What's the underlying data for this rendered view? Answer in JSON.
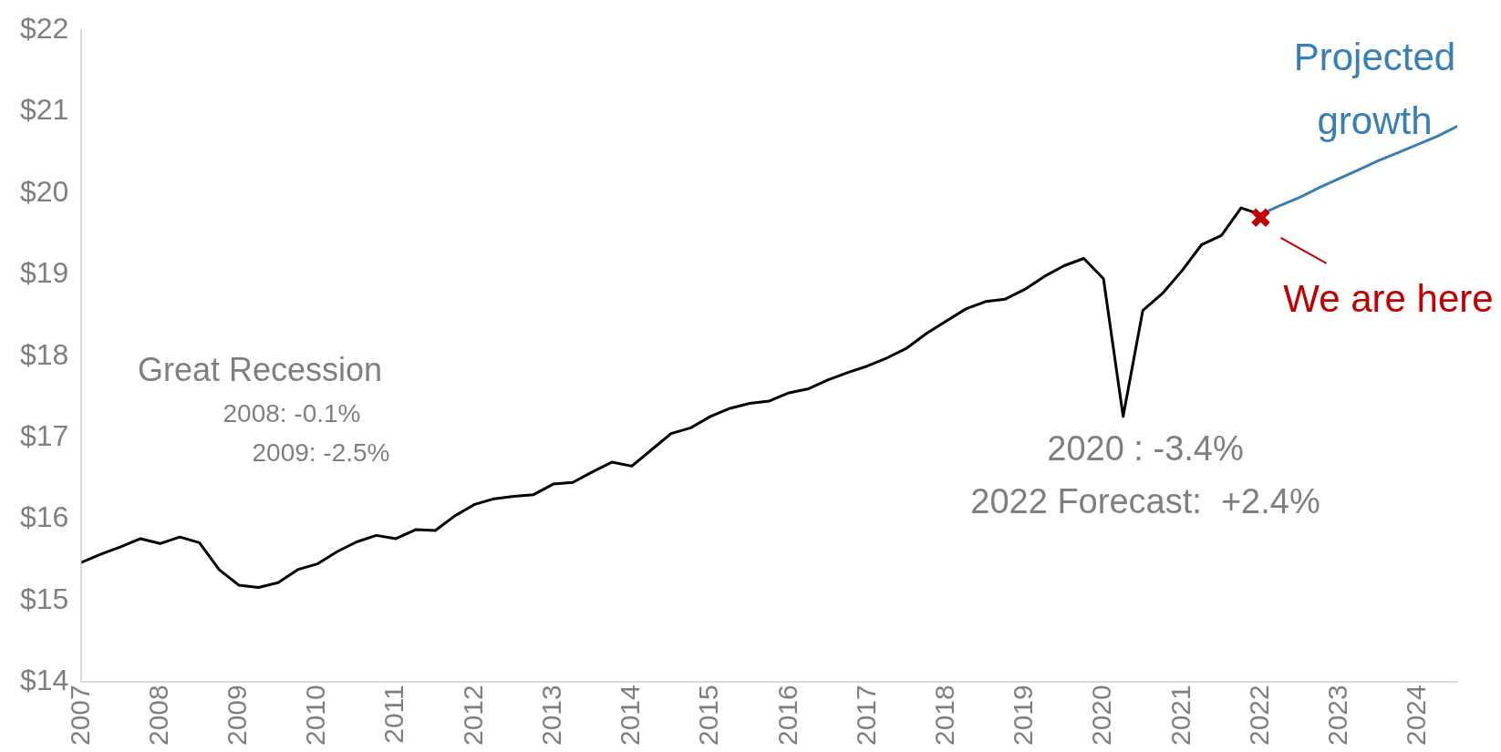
{
  "chart_data": {
    "type": "line",
    "categories": [
      "2007",
      null,
      null,
      null,
      "2008",
      null,
      null,
      null,
      "2009",
      null,
      null,
      null,
      "2010",
      null,
      null,
      null,
      "2011",
      null,
      null,
      null,
      "2012",
      null,
      null,
      null,
      "2013",
      null,
      null,
      null,
      "2014",
      null,
      null,
      null,
      "2015",
      null,
      null,
      null,
      "2016",
      null,
      null,
      null,
      "2017",
      null,
      null,
      null,
      "2018",
      null,
      null,
      null,
      "2019",
      null,
      null,
      null,
      "2020",
      null,
      null,
      null,
      "2021",
      null,
      null,
      null,
      "2022",
      null,
      null,
      null,
      "2023",
      null,
      null,
      null,
      "2024",
      null,
      null
    ],
    "series": [
      {
        "color": "#000000",
        "values": [
          15.47,
          15.57,
          15.66,
          15.76,
          15.7,
          15.78,
          15.71,
          15.38,
          15.19,
          15.16,
          15.22,
          15.38,
          15.45,
          15.6,
          15.72,
          15.8,
          15.76,
          15.87,
          15.86,
          16.04,
          16.18,
          16.25,
          16.28,
          16.3,
          16.43,
          16.45,
          16.58,
          16.7,
          16.65,
          16.85,
          17.05,
          17.12,
          17.26,
          17.36,
          17.42,
          17.45,
          17.55,
          17.6,
          17.71,
          17.8,
          17.88,
          17.98,
          18.1,
          18.28,
          18.43,
          18.58,
          18.67,
          18.7,
          18.82,
          18.98,
          19.11,
          19.2,
          18.95,
          17.26,
          18.56,
          18.77,
          19.05,
          19.37,
          19.48,
          19.82,
          19.74,
          null,
          null,
          null,
          null,
          null,
          null,
          null,
          null,
          null,
          null
        ]
      },
      {
        "name": "Projected growth",
        "color": "#3a7fb4",
        "values": [
          null,
          null,
          null,
          null,
          null,
          null,
          null,
          null,
          null,
          null,
          null,
          null,
          null,
          null,
          null,
          null,
          null,
          null,
          null,
          null,
          null,
          null,
          null,
          null,
          null,
          null,
          null,
          null,
          null,
          null,
          null,
          null,
          null,
          null,
          null,
          null,
          null,
          null,
          null,
          null,
          null,
          null,
          null,
          null,
          null,
          null,
          null,
          null,
          null,
          null,
          null,
          null,
          null,
          null,
          null,
          null,
          null,
          null,
          null,
          null,
          19.74,
          19.85,
          19.95,
          20.07,
          20.18,
          20.29,
          20.4,
          20.5,
          20.6,
          20.7,
          20.82
        ]
      },
      {
        "type": "scatter",
        "marker": "cross",
        "color": "#c00000",
        "values": [
          null,
          null,
          null,
          null,
          null,
          null,
          null,
          null,
          null,
          null,
          null,
          null,
          null,
          null,
          null,
          null,
          null,
          null,
          null,
          null,
          null,
          null,
          null,
          null,
          null,
          null,
          null,
          null,
          null,
          null,
          null,
          null,
          null,
          null,
          null,
          null,
          null,
          null,
          null,
          null,
          null,
          null,
          null,
          null,
          null,
          null,
          null,
          null,
          null,
          null,
          null,
          null,
          null,
          null,
          null,
          null,
          null,
          null,
          null,
          null,
          19.7,
          null,
          null,
          null,
          null,
          null,
          null,
          null,
          null,
          null,
          null
        ]
      }
    ],
    "ylim": [
      14,
      22
    ],
    "yticks": [
      {
        "value": 14,
        "label": "$14"
      },
      {
        "value": 15,
        "label": "$15"
      },
      {
        "value": 16,
        "label": "$16"
      },
      {
        "value": 17,
        "label": "$17"
      },
      {
        "value": 18,
        "label": "$18"
      },
      {
        "value": 19,
        "label": "$19"
      },
      {
        "value": 20,
        "label": "$20"
      },
      {
        "value": 21,
        "label": "$21"
      },
      {
        "value": 22,
        "label": "$22"
      }
    ],
    "grid": false,
    "legend": false,
    "marker": "none",
    "line_style": "solid",
    "annotations": [
      "Great Recession",
      "2008: -0.1%",
      "2009: -2.5%",
      "2020 : -3.4%",
      "2022 Forecast:  +2.4%",
      {
        "text": "We are here",
        "x": "2022",
        "y": 19.7
      }
    ]
  }
}
